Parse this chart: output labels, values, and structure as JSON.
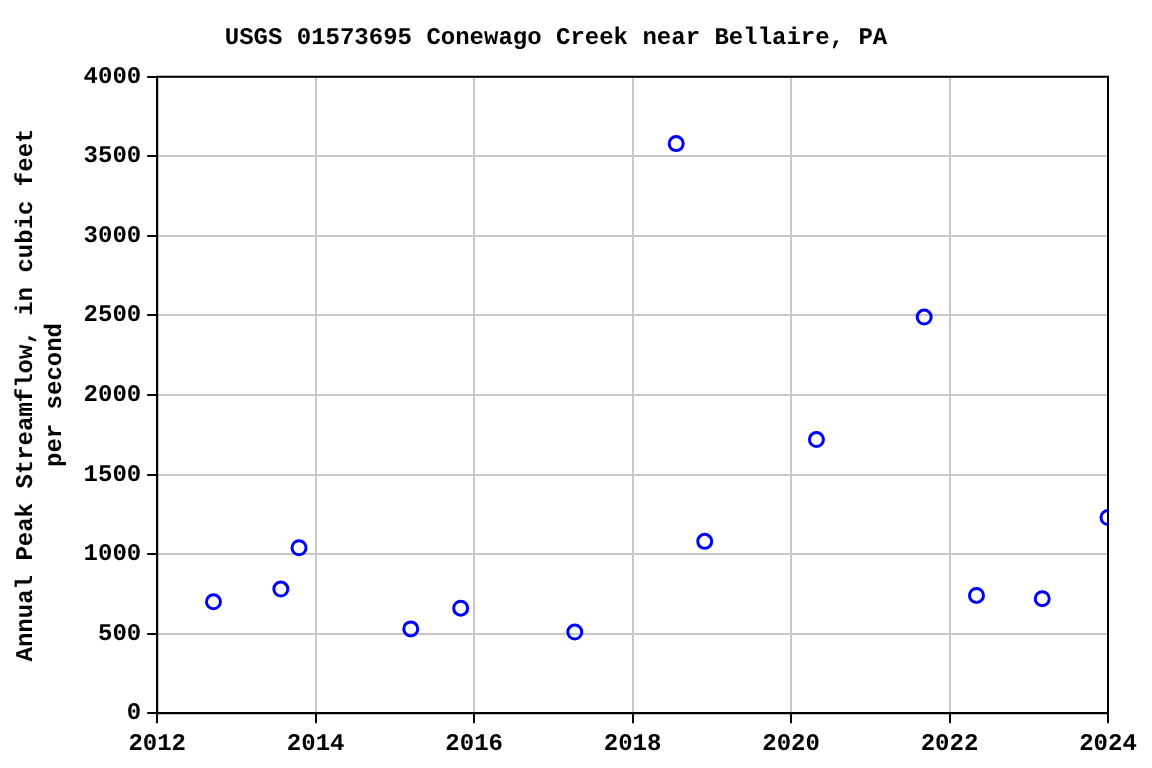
{
  "chart_data": {
    "type": "scatter",
    "title": "USGS 01573695 Conewago Creek near Bellaire, PA",
    "ylabel": "Annual Peak Streamflow, in cubic feet per second",
    "x": [
      2012.71,
      2013.56,
      2013.79,
      2015.2,
      2015.83,
      2017.27,
      2018.55,
      2018.91,
      2020.32,
      2021.68,
      2022.34,
      2023.17,
      2024.0
    ],
    "values": [
      700,
      780,
      1040,
      530,
      660,
      510,
      3580,
      1080,
      1720,
      2490,
      740,
      720,
      1230
    ],
    "color": "#0000ff",
    "marker": "circle",
    "grid": true,
    "legend": false,
    "xlim": [
      2012,
      2024
    ],
    "xticks": [
      2012,
      2014,
      2016,
      2018,
      2020,
      2022,
      2024
    ],
    "ylim": [
      0,
      4000
    ],
    "yticks": [
      0,
      500,
      1000,
      1500,
      2000,
      2500,
      3000,
      3500,
      4000
    ]
  }
}
